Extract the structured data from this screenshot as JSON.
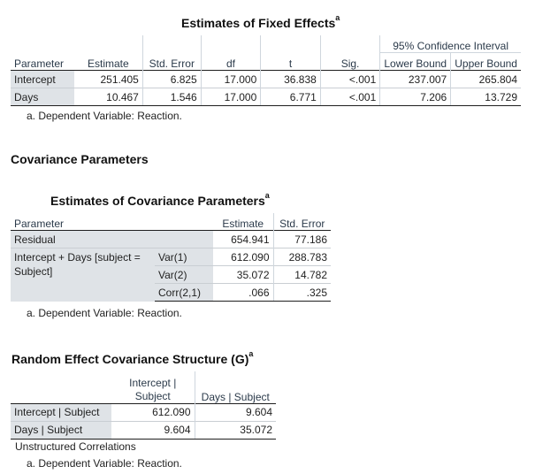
{
  "fixed": {
    "title": "Estimates of Fixed Effects",
    "sup": "a",
    "ci_header": "95% Confidence Interval",
    "headers": [
      "Parameter",
      "Estimate",
      "Std. Error",
      "df",
      "t",
      "Sig.",
      "Lower Bound",
      "Upper Bound"
    ],
    "rows": [
      [
        "Intercept",
        "251.405",
        "6.825",
        "17.000",
        "36.838",
        "<.001",
        "237.007",
        "265.804"
      ],
      [
        "Days",
        "10.467",
        "1.546",
        "17.000",
        "6.771",
        "<.001",
        "7.206",
        "13.729"
      ]
    ],
    "footnote": "a. Dependent Variable: Reaction."
  },
  "covariance": {
    "section": "Covariance Parameters",
    "title": "Estimates of Covariance Parameters",
    "sup": "a",
    "headers": [
      "Parameter",
      "Estimate",
      "Std. Error"
    ],
    "residual": [
      "Residual",
      "654.941",
      "77.186"
    ],
    "group_label_1": "Intercept + Days [subject =",
    "group_label_2": "Subject]",
    "group_rows": [
      [
        "Var(1)",
        "612.090",
        "288.783"
      ],
      [
        "Var(2)",
        "35.072",
        "14.782"
      ],
      [
        "Corr(2,1)",
        ".066",
        ".325"
      ]
    ],
    "footnote": "a. Dependent Variable: Reaction."
  },
  "random": {
    "title": "Random Effect Covariance Structure (G)",
    "sup": "a",
    "col1_line1": "Intercept |",
    "col1_line2": "Subject",
    "col2": "Days | Subject",
    "rows": [
      [
        "Intercept | Subject",
        "612.090",
        "9.604"
      ],
      [
        "Days | Subject",
        "9.604",
        "35.072"
      ]
    ],
    "note": "Unstructured Correlations",
    "footnote": "a. Dependent Variable: Reaction."
  }
}
